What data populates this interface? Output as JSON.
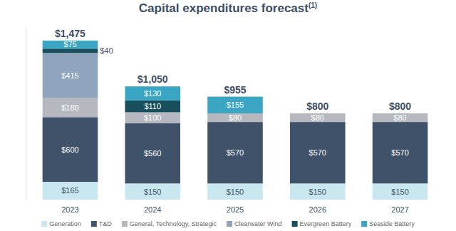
{
  "chart_data": {
    "type": "bar",
    "stacked": true,
    "data_labels": true,
    "tick_labels": "x",
    "legend": "bottom",
    "title": "Capital expenditures forecast",
    "annotations": [
      "(1)"
    ],
    "categories": [
      "2023",
      "2024",
      "2025",
      "2026",
      "2027"
    ],
    "ylim": [
      0,
      1600
    ],
    "totals": [
      1475,
      1050,
      955,
      800,
      800
    ],
    "total_labels": [
      "$1,475",
      "$1,050",
      "$955",
      "$800",
      "$800"
    ],
    "series": [
      {
        "name": "Generation",
        "color": "#c9e7ef",
        "values": [
          165,
          150,
          150,
          150,
          150
        ],
        "value_labels": [
          "$165",
          "$150",
          "$150",
          "$150",
          "$150"
        ]
      },
      {
        "name": "T&D",
        "color": "#3f5269",
        "values": [
          600,
          560,
          570,
          570,
          570
        ],
        "value_labels": [
          "$600",
          "$560",
          "$570",
          "$570",
          "$570"
        ]
      },
      {
        "name": "General, Technology, Strategic",
        "color": "#b5b9bf",
        "values": [
          180,
          100,
          80,
          80,
          80
        ],
        "value_labels": [
          "$180",
          "$100",
          "$80",
          "$80",
          "$80"
        ]
      },
      {
        "name": "Clearwater Wind",
        "color": "#8ea5bd",
        "values": [
          415,
          null,
          null,
          null,
          null
        ],
        "value_labels": [
          "$415",
          null,
          null,
          null,
          null
        ]
      },
      {
        "name": "Evergreen Battery",
        "color": "#174f5c",
        "values": [
          40,
          110,
          null,
          null,
          null
        ],
        "value_labels": [
          "$40",
          "$110",
          null,
          null,
          null
        ]
      },
      {
        "name": "Seaside Battery",
        "color": "#3aa6c4",
        "values": [
          75,
          130,
          155,
          null,
          null
        ],
        "value_labels": [
          "$75",
          "$130",
          "$155",
          null,
          null
        ]
      }
    ]
  }
}
